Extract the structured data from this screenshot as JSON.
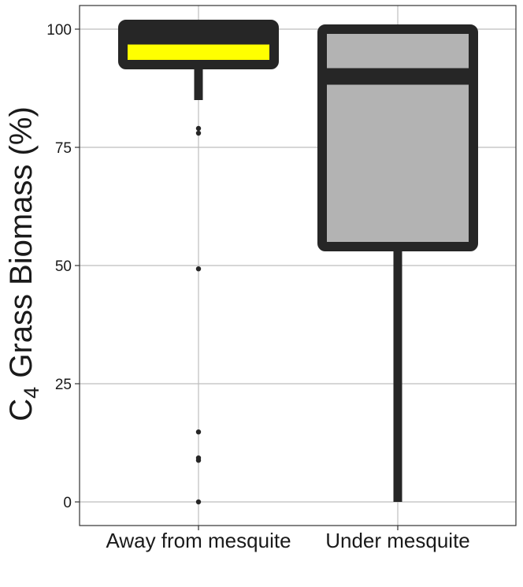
{
  "chart_data": {
    "type": "box",
    "title": "",
    "xlabel": "",
    "ylabel": {
      "main": "C",
      "subscript": "4",
      "rest": " Grass Biomass (%)"
    },
    "ylim": [
      -5,
      105
    ],
    "yticks": [
      "0",
      "25",
      "50",
      "75",
      "100"
    ],
    "grid": true,
    "categories": [
      "Away from mesquite",
      "Under mesquite"
    ],
    "boxes": [
      {
        "category": "Away from mesquite",
        "fill": "#ffff00",
        "lower_whisker": 85,
        "q1": 92.5,
        "median": 98.5,
        "q3": 101,
        "upper_whisker": 101,
        "outliers": [
          79,
          78,
          49.3,
          14.8,
          9.3,
          8.8,
          0
        ]
      },
      {
        "category": "Under mesquite",
        "fill": "#b3b3b3",
        "lower_whisker": 0,
        "q1": 54,
        "median": 90,
        "q3": 100,
        "upper_whisker": 100,
        "outliers": []
      }
    ],
    "colors": {
      "stroke": "#262626",
      "grid": "#bdbdbd",
      "panel_border": "#333333"
    }
  }
}
